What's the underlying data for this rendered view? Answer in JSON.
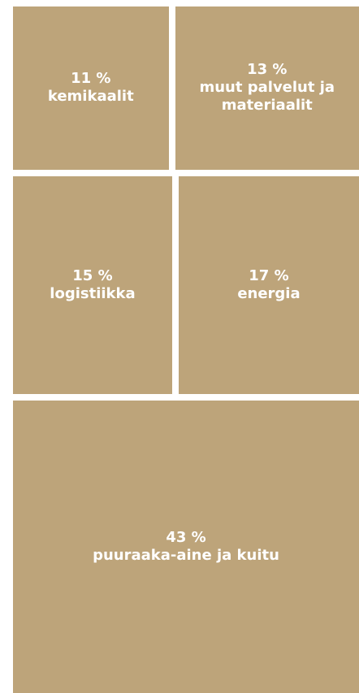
{
  "chart_data": {
    "type": "treemap",
    "categories": [
      "kemikaalit",
      "muut palvelut ja materiaalit",
      "logistiikka",
      "energia",
      "puuraaka-aine ja kuitu"
    ],
    "values": [
      11,
      13,
      15,
      17,
      43
    ],
    "value_labels": [
      "11 %",
      "13 %",
      "15 %",
      "17 %",
      "43 %"
    ],
    "color": "#bda47a"
  }
}
